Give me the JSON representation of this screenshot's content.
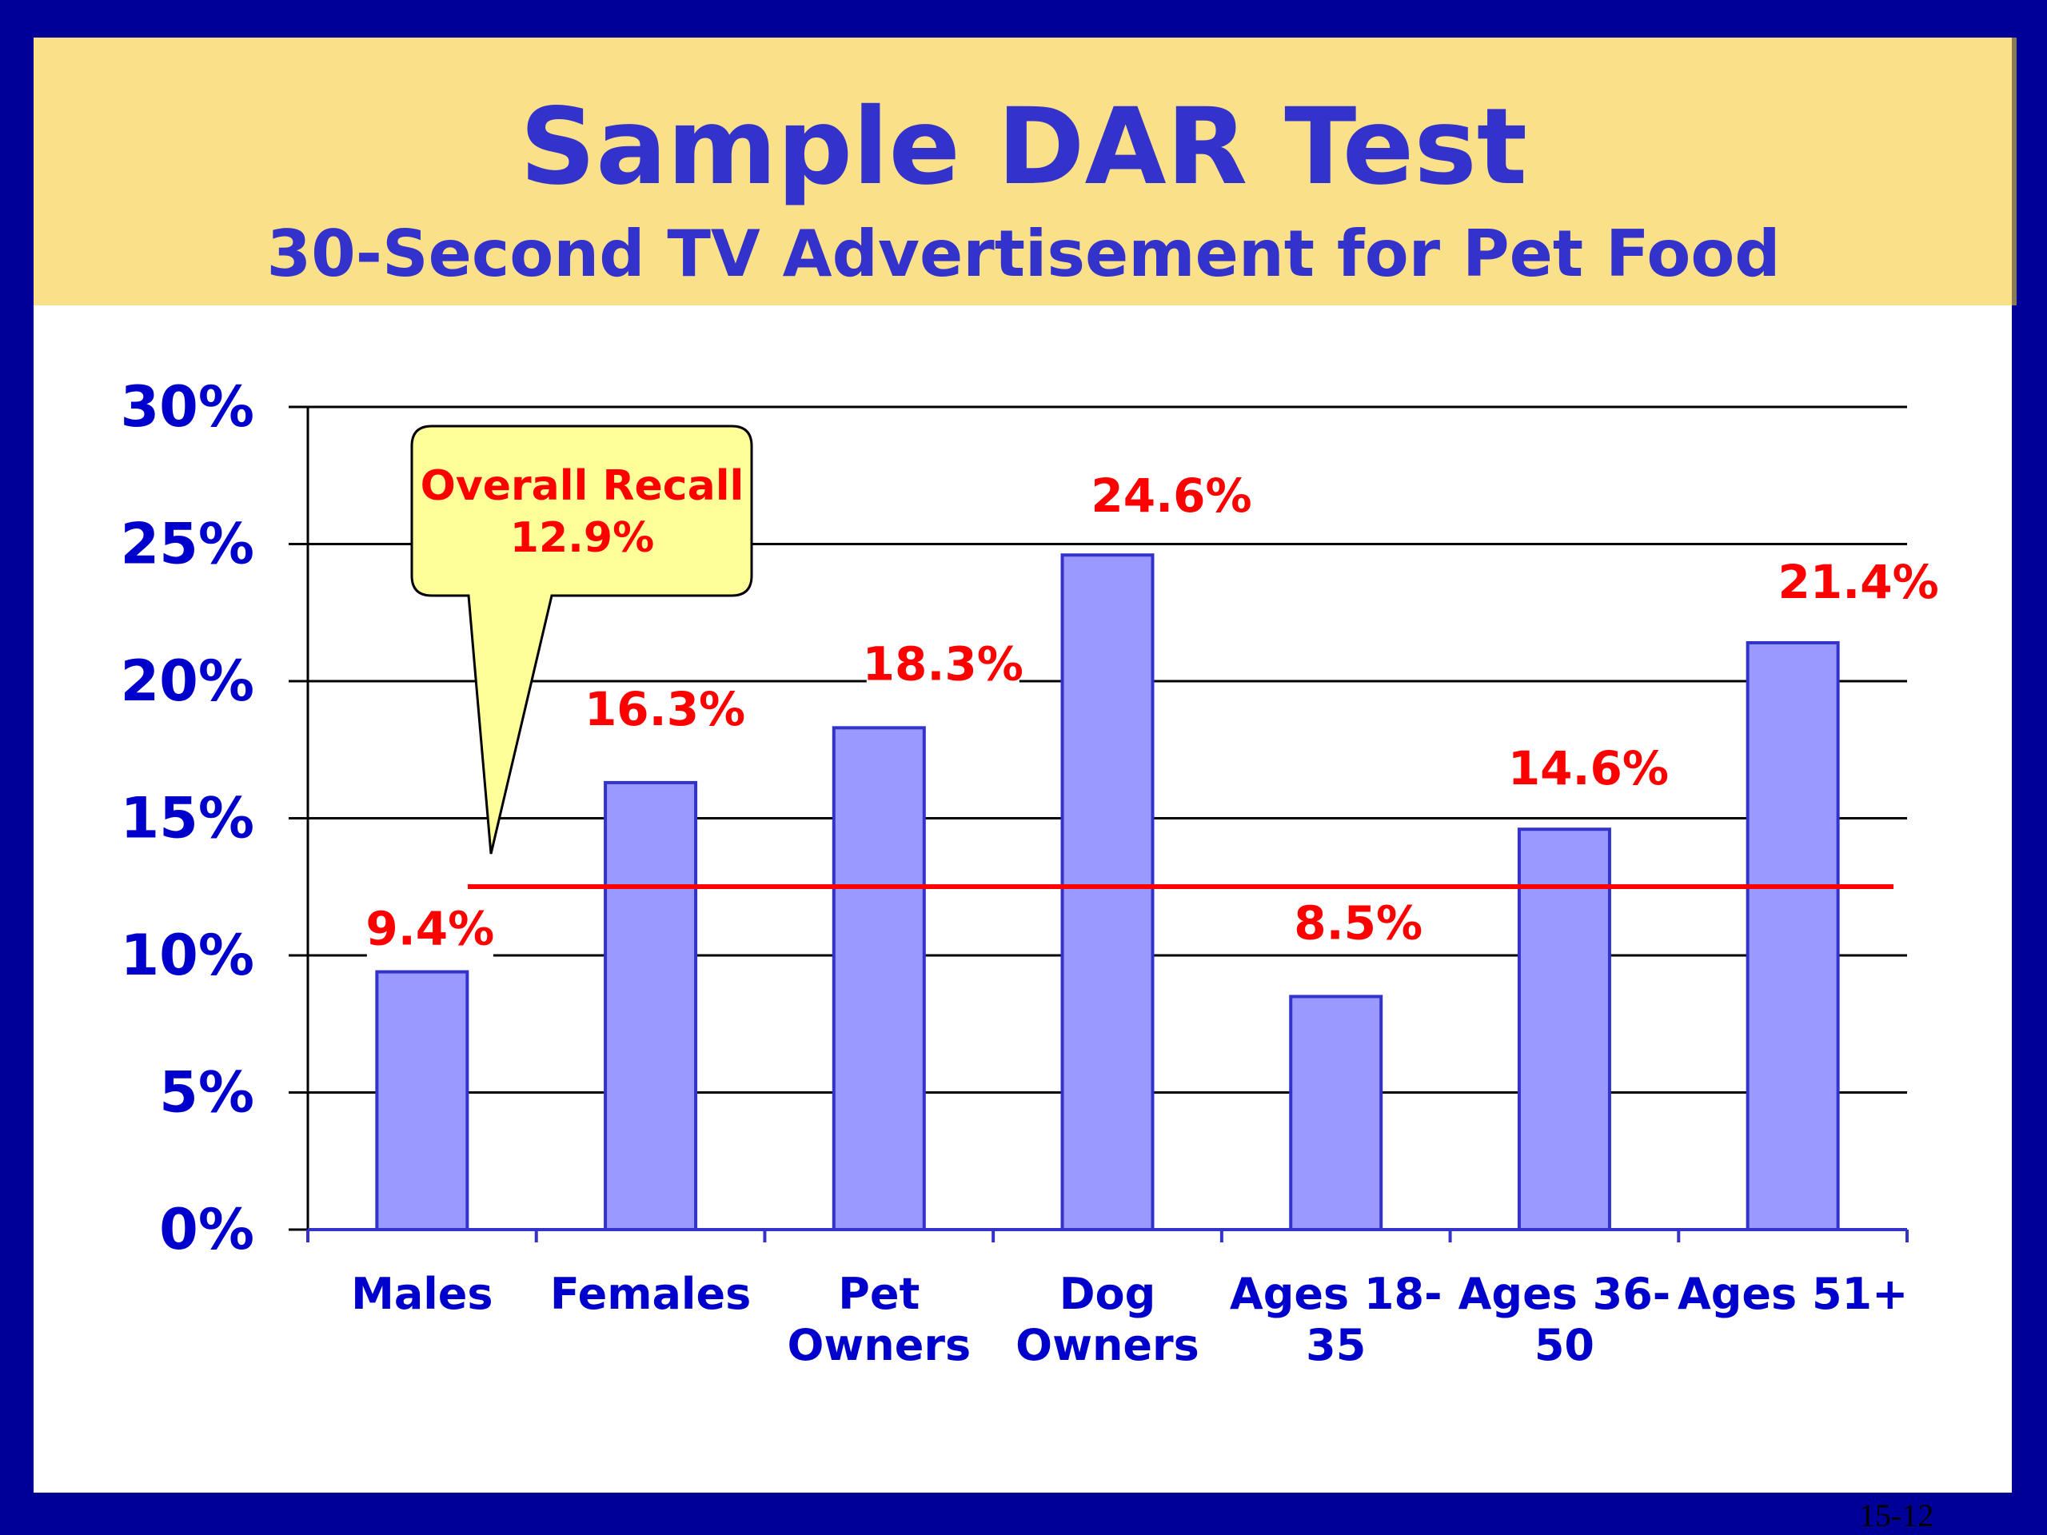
{
  "slide": {
    "title": "Sample DAR Test",
    "subtitle": "30-Second TV Advertisement for Pet Food",
    "slide_number": "15-12"
  },
  "colors": {
    "frame": "#000099",
    "banner": "#fbe08a",
    "title_text": "#3333cc",
    "axis_text": "#0000cc",
    "bar_fill": "#9999ff",
    "bar_stroke": "#3333cc",
    "value_label": "#ff0000",
    "reference_line": "#ff0000",
    "callout_fill": "#ffff99"
  },
  "chart_data": {
    "type": "bar",
    "title": "Sample DAR Test",
    "subtitle": "30-Second TV Advertisement for Pet Food",
    "categories": [
      [
        "Males"
      ],
      [
        "Females"
      ],
      [
        "Pet",
        "Owners"
      ],
      [
        "Dog",
        "Owners"
      ],
      [
        "Ages 18-",
        "35"
      ],
      [
        "Ages 36-",
        "50"
      ],
      [
        "Ages 51+"
      ]
    ],
    "values": [
      9.4,
      16.3,
      18.3,
      24.6,
      8.5,
      14.6,
      21.4
    ],
    "value_labels": [
      "9.4%",
      "16.3%",
      "18.3%",
      "24.6%",
      "8.5%",
      "14.6%",
      "21.4%"
    ],
    "ylim": [
      0,
      30
    ],
    "yticks": [
      0,
      5,
      10,
      15,
      20,
      25,
      30
    ],
    "ytick_labels": [
      "0%",
      "5%",
      "10%",
      "15%",
      "20%",
      "25%",
      "30%"
    ],
    "grid": true,
    "reference_line": {
      "value": 12.9,
      "callout_lines": [
        "Overall Recall",
        "12.9%"
      ]
    }
  }
}
